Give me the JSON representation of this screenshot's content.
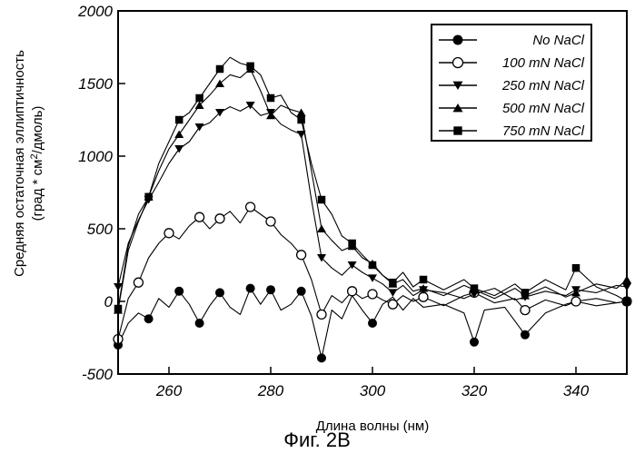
{
  "chart_data": {
    "type": "line",
    "xlabel": "Длина волны (нм)",
    "ylabel_line1": "Средняя остаточная эллиптичность",
    "ylabel_line2_pre": "(град * см",
    "ylabel_line2_sup": "2",
    "ylabel_line2_post": "/дмоль)",
    "xlim": [
      250,
      350
    ],
    "ylim": [
      -500,
      2000
    ],
    "xticks": [
      260,
      280,
      300,
      320,
      340
    ],
    "yticks": [
      -500,
      0,
      500,
      1000,
      1500,
      2000
    ],
    "grid": false,
    "legend_position": "top-right",
    "series": [
      {
        "name": "No NaCl",
        "marker": "circle-filled",
        "markers": [
          [
            250,
            -300
          ],
          [
            256,
            -120
          ],
          [
            262,
            70
          ],
          [
            266,
            -150
          ],
          [
            270,
            60
          ],
          [
            276,
            90
          ],
          [
            280,
            80
          ],
          [
            286,
            70
          ],
          [
            290,
            -390
          ],
          [
            300,
            -150
          ],
          [
            320,
            -280
          ],
          [
            330,
            -230
          ],
          [
            340,
            0
          ],
          [
            350,
            0
          ]
        ],
        "points": [
          [
            250,
            -300
          ],
          [
            252,
            -150
          ],
          [
            254,
            -80
          ],
          [
            256,
            -120
          ],
          [
            258,
            20
          ],
          [
            260,
            -40
          ],
          [
            262,
            70
          ],
          [
            264,
            -20
          ],
          [
            266,
            -150
          ],
          [
            268,
            -30
          ],
          [
            270,
            60
          ],
          [
            272,
            -40
          ],
          [
            274,
            -90
          ],
          [
            276,
            90
          ],
          [
            278,
            -20
          ],
          [
            280,
            80
          ],
          [
            282,
            -60
          ],
          [
            284,
            -20
          ],
          [
            286,
            70
          ],
          [
            288,
            -100
          ],
          [
            290,
            -390
          ],
          [
            292,
            -60
          ],
          [
            294,
            -120
          ],
          [
            296,
            40
          ],
          [
            298,
            -60
          ],
          [
            300,
            -150
          ],
          [
            302,
            -20
          ],
          [
            304,
            30
          ],
          [
            306,
            -60
          ],
          [
            308,
            20
          ],
          [
            310,
            -40
          ],
          [
            314,
            -20
          ],
          [
            318,
            -80
          ],
          [
            320,
            -280
          ],
          [
            322,
            -60
          ],
          [
            326,
            -40
          ],
          [
            330,
            -230
          ],
          [
            334,
            -80
          ],
          [
            338,
            -20
          ],
          [
            340,
            0
          ],
          [
            344,
            -30
          ],
          [
            348,
            -10
          ],
          [
            350,
            0
          ]
        ]
      },
      {
        "name": "100 mN NaCl",
        "marker": "circle-open",
        "markers": [
          [
            250,
            -260
          ],
          [
            254,
            130
          ],
          [
            260,
            470
          ],
          [
            266,
            580
          ],
          [
            270,
            570
          ],
          [
            276,
            650
          ],
          [
            280,
            550
          ],
          [
            286,
            320
          ],
          [
            290,
            -90
          ],
          [
            296,
            70
          ],
          [
            300,
            50
          ],
          [
            304,
            -20
          ],
          [
            310,
            30
          ],
          [
            320,
            60
          ],
          [
            330,
            -60
          ],
          [
            340,
            0
          ],
          [
            350,
            0
          ]
        ],
        "points": [
          [
            250,
            -260
          ],
          [
            252,
            20
          ],
          [
            254,
            130
          ],
          [
            256,
            300
          ],
          [
            258,
            400
          ],
          [
            260,
            470
          ],
          [
            262,
            430
          ],
          [
            264,
            520
          ],
          [
            266,
            580
          ],
          [
            268,
            500
          ],
          [
            270,
            570
          ],
          [
            272,
            620
          ],
          [
            274,
            540
          ],
          [
            276,
            650
          ],
          [
            278,
            600
          ],
          [
            280,
            550
          ],
          [
            282,
            460
          ],
          [
            284,
            400
          ],
          [
            286,
            320
          ],
          [
            288,
            150
          ],
          [
            290,
            -90
          ],
          [
            292,
            40
          ],
          [
            294,
            -10
          ],
          [
            296,
            70
          ],
          [
            298,
            20
          ],
          [
            300,
            50
          ],
          [
            302,
            10
          ],
          [
            304,
            -20
          ],
          [
            306,
            40
          ],
          [
            308,
            0
          ],
          [
            310,
            30
          ],
          [
            314,
            -30
          ],
          [
            318,
            40
          ],
          [
            320,
            60
          ],
          [
            324,
            -10
          ],
          [
            328,
            20
          ],
          [
            330,
            -60
          ],
          [
            334,
            10
          ],
          [
            338,
            -30
          ],
          [
            340,
            0
          ],
          [
            344,
            20
          ],
          [
            348,
            -10
          ],
          [
            350,
            0
          ]
        ]
      },
      {
        "name": "250 mN NaCl",
        "marker": "triangle-down",
        "markers": [
          [
            250,
            100
          ],
          [
            256,
            700
          ],
          [
            262,
            1050
          ],
          [
            266,
            1200
          ],
          [
            270,
            1300
          ],
          [
            276,
            1350
          ],
          [
            280,
            1300
          ],
          [
            286,
            1150
          ],
          [
            290,
            300
          ],
          [
            296,
            250
          ],
          [
            300,
            160
          ],
          [
            304,
            60
          ],
          [
            310,
            80
          ],
          [
            320,
            50
          ],
          [
            330,
            30
          ],
          [
            340,
            80
          ],
          [
            350,
            100
          ]
        ],
        "points": [
          [
            250,
            100
          ],
          [
            252,
            400
          ],
          [
            254,
            560
          ],
          [
            256,
            700
          ],
          [
            258,
            820
          ],
          [
            260,
            950
          ],
          [
            262,
            1050
          ],
          [
            264,
            1100
          ],
          [
            266,
            1200
          ],
          [
            268,
            1230
          ],
          [
            270,
            1300
          ],
          [
            272,
            1340
          ],
          [
            274,
            1310
          ],
          [
            276,
            1350
          ],
          [
            278,
            1280
          ],
          [
            280,
            1300
          ],
          [
            282,
            1220
          ],
          [
            284,
            1180
          ],
          [
            286,
            1150
          ],
          [
            288,
            700
          ],
          [
            290,
            300
          ],
          [
            292,
            230
          ],
          [
            294,
            180
          ],
          [
            296,
            250
          ],
          [
            298,
            200
          ],
          [
            300,
            160
          ],
          [
            302,
            120
          ],
          [
            304,
            60
          ],
          [
            306,
            110
          ],
          [
            308,
            40
          ],
          [
            310,
            80
          ],
          [
            314,
            60
          ],
          [
            318,
            20
          ],
          [
            320,
            50
          ],
          [
            324,
            90
          ],
          [
            328,
            10
          ],
          [
            330,
            30
          ],
          [
            334,
            70
          ],
          [
            338,
            40
          ],
          [
            340,
            80
          ],
          [
            344,
            60
          ],
          [
            348,
            110
          ],
          [
            350,
            100
          ]
        ]
      },
      {
        "name": "500 mN NaCl",
        "marker": "triangle-up",
        "markers": [
          [
            250,
            -60
          ],
          [
            256,
            720
          ],
          [
            262,
            1150
          ],
          [
            266,
            1350
          ],
          [
            270,
            1500
          ],
          [
            276,
            1600
          ],
          [
            280,
            1280
          ],
          [
            286,
            1300
          ],
          [
            290,
            500
          ],
          [
            296,
            380
          ],
          [
            300,
            260
          ],
          [
            304,
            120
          ],
          [
            310,
            90
          ],
          [
            320,
            80
          ],
          [
            330,
            40
          ],
          [
            340,
            60
          ],
          [
            350,
            150
          ]
        ],
        "points": [
          [
            250,
            -60
          ],
          [
            252,
            350
          ],
          [
            254,
            550
          ],
          [
            256,
            720
          ],
          [
            258,
            900
          ],
          [
            260,
            1050
          ],
          [
            262,
            1150
          ],
          [
            264,
            1250
          ],
          [
            266,
            1350
          ],
          [
            268,
            1420
          ],
          [
            270,
            1500
          ],
          [
            272,
            1560
          ],
          [
            274,
            1540
          ],
          [
            276,
            1600
          ],
          [
            278,
            1450
          ],
          [
            280,
            1280
          ],
          [
            282,
            1350
          ],
          [
            284,
            1320
          ],
          [
            286,
            1300
          ],
          [
            288,
            900
          ],
          [
            290,
            500
          ],
          [
            292,
            420
          ],
          [
            294,
            350
          ],
          [
            296,
            380
          ],
          [
            298,
            300
          ],
          [
            300,
            260
          ],
          [
            302,
            180
          ],
          [
            304,
            120
          ],
          [
            306,
            150
          ],
          [
            308,
            70
          ],
          [
            310,
            90
          ],
          [
            314,
            40
          ],
          [
            318,
            110
          ],
          [
            320,
            80
          ],
          [
            324,
            20
          ],
          [
            328,
            90
          ],
          [
            330,
            40
          ],
          [
            334,
            100
          ],
          [
            338,
            30
          ],
          [
            340,
            60
          ],
          [
            344,
            120
          ],
          [
            348,
            90
          ],
          [
            350,
            150
          ]
        ]
      },
      {
        "name": "750 mN NaCl",
        "marker": "square-filled",
        "markers": [
          [
            250,
            -50
          ],
          [
            256,
            720
          ],
          [
            262,
            1250
          ],
          [
            266,
            1400
          ],
          [
            270,
            1600
          ],
          [
            276,
            1620
          ],
          [
            280,
            1400
          ],
          [
            286,
            1250
          ],
          [
            290,
            700
          ],
          [
            296,
            400
          ],
          [
            300,
            250
          ],
          [
            304,
            130
          ],
          [
            310,
            150
          ],
          [
            320,
            90
          ],
          [
            330,
            60
          ],
          [
            340,
            230
          ],
          [
            350,
            0
          ]
        ],
        "points": [
          [
            250,
            -50
          ],
          [
            252,
            380
          ],
          [
            254,
            600
          ],
          [
            256,
            720
          ],
          [
            258,
            950
          ],
          [
            260,
            1100
          ],
          [
            262,
            1250
          ],
          [
            264,
            1300
          ],
          [
            266,
            1400
          ],
          [
            268,
            1500
          ],
          [
            270,
            1600
          ],
          [
            272,
            1680
          ],
          [
            274,
            1640
          ],
          [
            276,
            1620
          ],
          [
            278,
            1560
          ],
          [
            280,
            1400
          ],
          [
            282,
            1420
          ],
          [
            284,
            1300
          ],
          [
            286,
            1250
          ],
          [
            288,
            950
          ],
          [
            290,
            700
          ],
          [
            292,
            600
          ],
          [
            294,
            450
          ],
          [
            296,
            400
          ],
          [
            298,
            320
          ],
          [
            300,
            250
          ],
          [
            302,
            180
          ],
          [
            304,
            130
          ],
          [
            306,
            200
          ],
          [
            308,
            100
          ],
          [
            310,
            150
          ],
          [
            314,
            80
          ],
          [
            318,
            150
          ],
          [
            320,
            90
          ],
          [
            324,
            40
          ],
          [
            328,
            120
          ],
          [
            330,
            60
          ],
          [
            334,
            150
          ],
          [
            338,
            80
          ],
          [
            340,
            230
          ],
          [
            344,
            100
          ],
          [
            348,
            40
          ],
          [
            350,
            0
          ]
        ]
      }
    ]
  },
  "caption": "Фиг. 2В"
}
